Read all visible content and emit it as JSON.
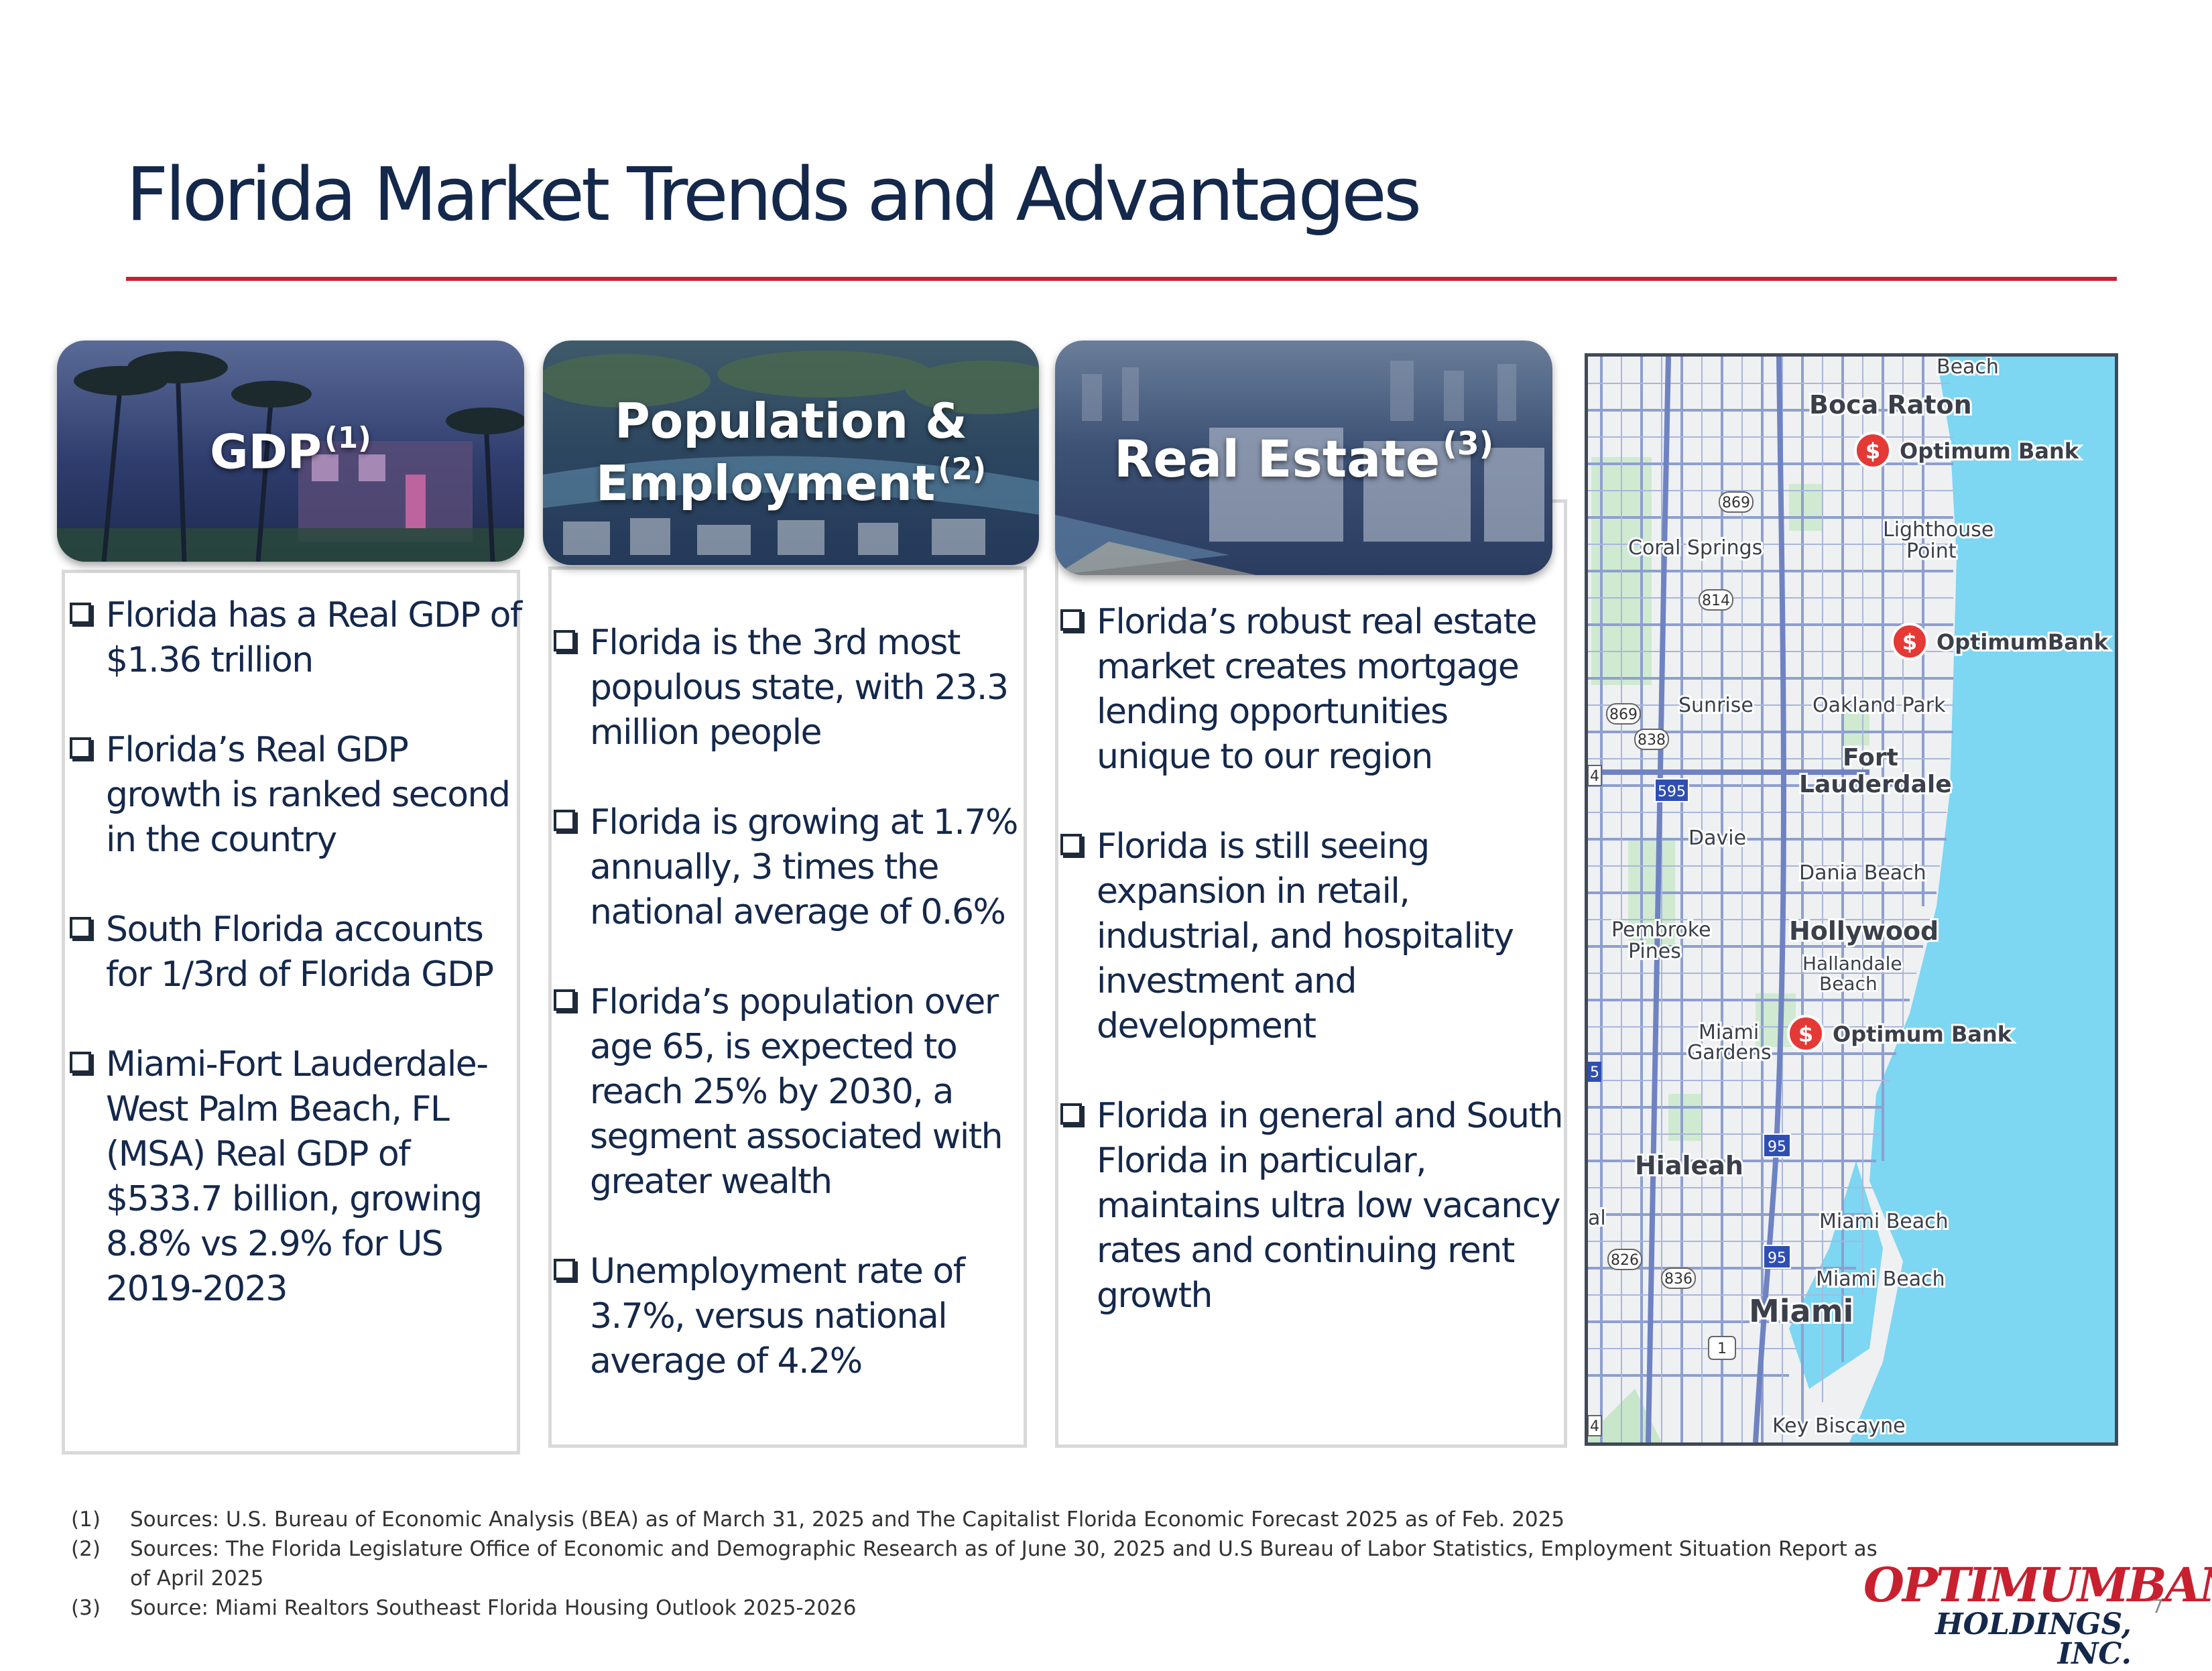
{
  "slide": {
    "title": "Florida Market Trends and Advantages",
    "page_number": "7"
  },
  "columns": [
    {
      "banner_line1": "GDP",
      "banner_line2": "",
      "banner_sup": "(1)",
      "bullets": [
        "Florida has a Real GDP of $1.36 trillion",
        "Florida’s Real GDP growth is ranked second in the country",
        "South Florida accounts for 1/3rd of Florida GDP",
        "Miami-Fort Lauderdale-West Palm Beach, FL (MSA) Real GDP of $533.7 billion, growing 8.8% vs 2.9% for US 2019-2023"
      ]
    },
    {
      "banner_line1": "Population &",
      "banner_line2": "Employment",
      "banner_sup": "(2)",
      "bullets": [
        "Florida is the 3rd most populous state, with 23.3 million people",
        "Florida is growing at 1.7% annually, 3 times the national average of 0.6%",
        "Florida’s population over age 65, is expected to reach 25% by 2030, a segment associated with greater wealth",
        "Unemployment rate of 3.7%, versus national average of 4.2%"
      ]
    },
    {
      "banner_line1": "Real Estate",
      "banner_line2": "",
      "banner_sup": "(3)",
      "bullets": [
        "Florida’s robust real estate market creates mortgage lending opportunities unique to our region",
        "Florida is still seeing expansion in retail, industrial, and hospitality investment and development",
        "Florida in general and South Florida in particular, maintains ultra low vacancy rates and continuing rent growth"
      ]
    }
  ],
  "map": {
    "places": [
      "Beach",
      "Boca Raton",
      "Coral Springs",
      "Lighthouse",
      "Point",
      "Sunrise",
      "Oakland Park",
      "Fort",
      "Lauderdale",
      "Davie",
      "Dania Beach",
      "Pembroke",
      "Pines",
      "Hollywood",
      "Hallandale",
      "Beach",
      "Miami",
      "Gardens",
      "Hialeah",
      "Miami Beach",
      "Miami Beach",
      "Miami",
      "Key Biscayne",
      "al"
    ],
    "branches": [
      "Optimum Bank",
      "OptimumBank",
      "Optimum Bank"
    ],
    "road_shields": [
      "869",
      "814",
      "869",
      "838",
      "595",
      "95",
      "95",
      "826",
      "836",
      "1",
      "5",
      "4",
      "4"
    ],
    "colors": {
      "water": "#7dd6f2",
      "land": "#eef0f2",
      "roads": "#8e9fcf",
      "pin": "#e53935"
    }
  },
  "footnotes": [
    {
      "num": "(1)",
      "text": "Sources: U.S. Bureau of Economic Analysis (BEA) as of March 31, 2025 and The Capitalist Florida Economic Forecast 2025 as of Feb. 2025"
    },
    {
      "num": "(2)",
      "text": "Sources: The Florida Legislature Office of Economic and Demographic Research as of June 30, 2025 and U.S Bureau of Labor Statistics, Employment Situation Report as of April 2025"
    },
    {
      "num": "(3)",
      "text": "Source: Miami Realtors Southeast Florida Housing Outlook 2025-2026"
    }
  ],
  "logo": {
    "line1": "OPTIMUMBANK",
    "line2": "HOLDINGS, INC."
  },
  "colors": {
    "title": "#14284b",
    "accent_red": "#c8202f"
  }
}
